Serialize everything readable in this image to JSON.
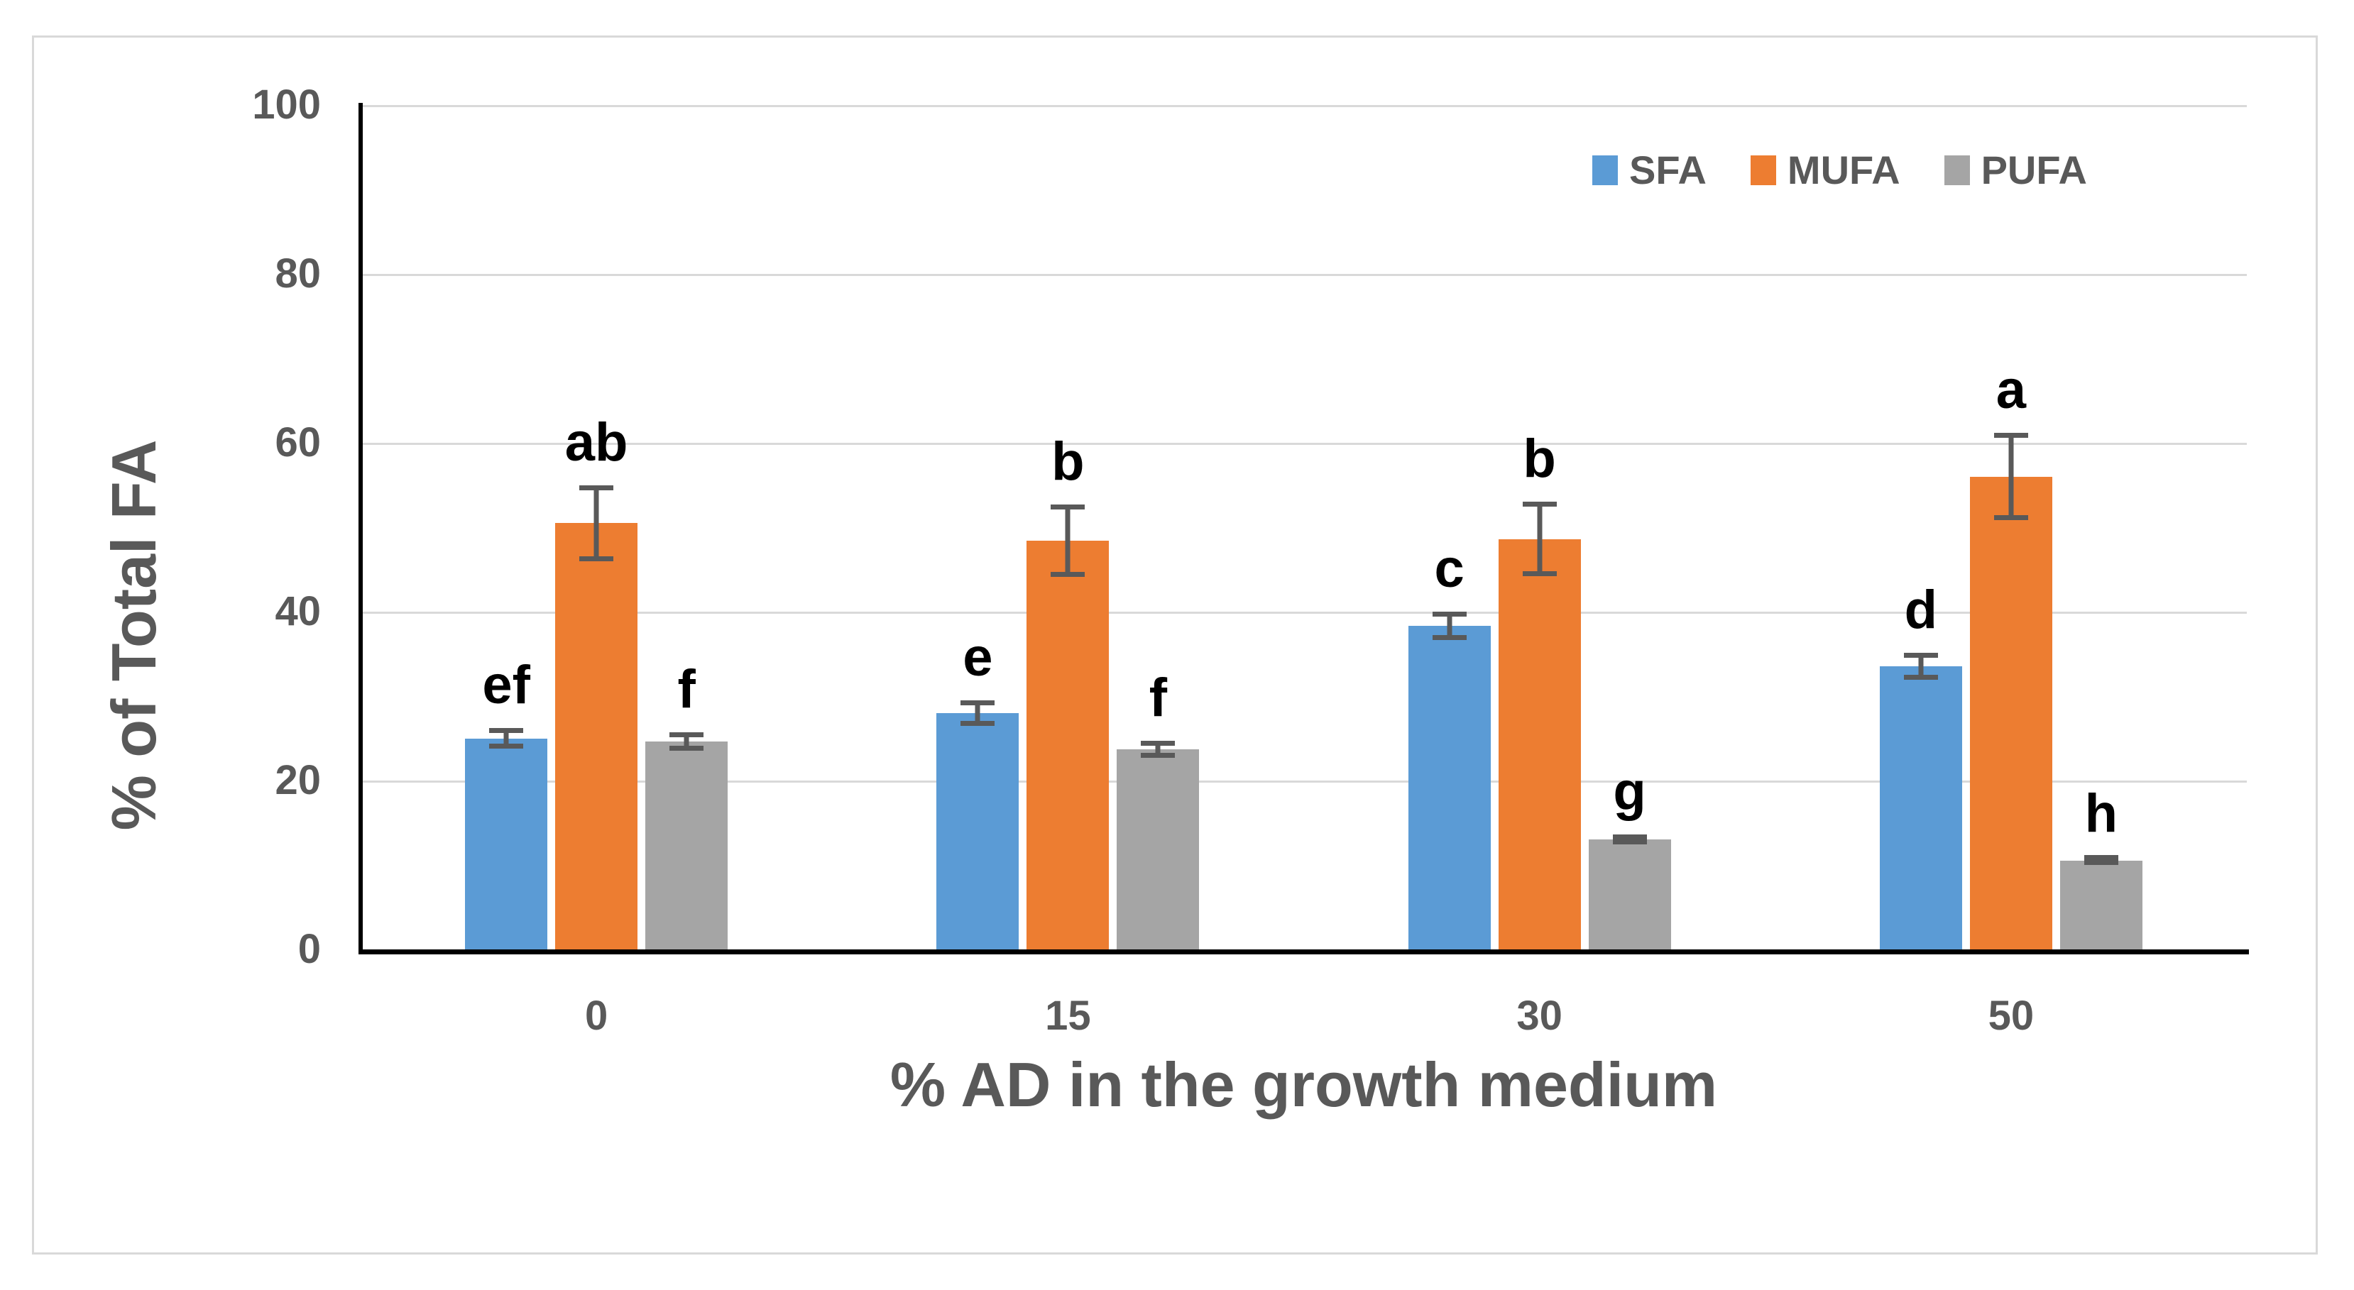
{
  "figure": {
    "background": "#ffffff",
    "frame_border_color": "#d9d9d9"
  },
  "chart_data": {
    "type": "bar",
    "title": "",
    "xlabel": "% AD in the growth medium",
    "ylabel": "% of Total FA",
    "categories": [
      "0",
      "15",
      "30",
      "50"
    ],
    "yticks": [
      0,
      20,
      40,
      60,
      80,
      100
    ],
    "ylim": [
      0,
      100
    ],
    "grid": true,
    "gridline_color": "#d9d9d9",
    "axis_color": "#000000",
    "tick_label_color": "#595959",
    "error_bar_color": "#595959",
    "annotation_color": "#000000",
    "legend_position": "top-right",
    "series": [
      {
        "name": "SFA",
        "color": "#5b9bd5",
        "values": [
          25.0,
          28.0,
          38.3,
          33.5
        ],
        "errors": [
          1.2,
          1.5,
          1.7,
          1.6
        ],
        "letters": [
          "ef",
          "e",
          "c",
          "d"
        ]
      },
      {
        "name": "MUFA",
        "color": "#ed7d31",
        "values": [
          50.5,
          48.4,
          48.6,
          56.0
        ],
        "errors": [
          4.5,
          4.3,
          4.4,
          5.2
        ],
        "letters": [
          "ab",
          "b",
          "b",
          "a"
        ]
      },
      {
        "name": "PUFA",
        "color": "#a5a5a5",
        "values": [
          24.6,
          23.7,
          13.0,
          10.5
        ],
        "errors": [
          1.1,
          1.0,
          0.6,
          0.5
        ],
        "letters": [
          "f",
          "f",
          "g",
          "h"
        ]
      }
    ]
  }
}
